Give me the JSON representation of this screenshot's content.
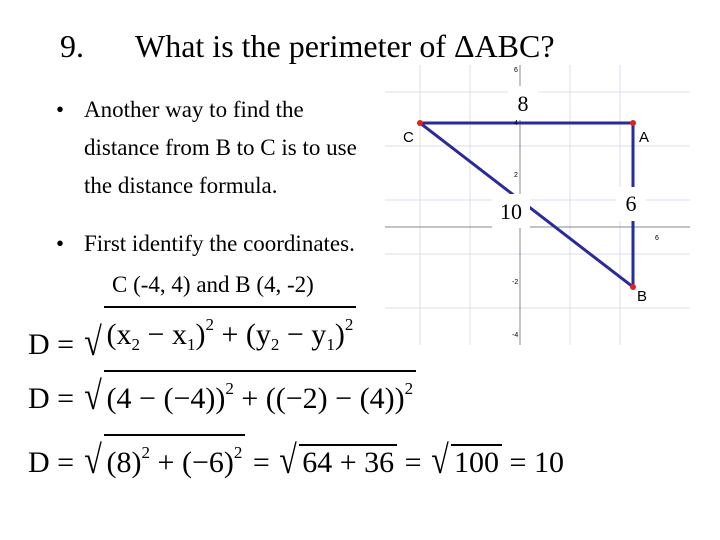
{
  "title": {
    "number": "9.",
    "text": "What is the perimeter of ΔABC?"
  },
  "bullets": [
    {
      "marker": "•",
      "lines": [
        "Another way to find the",
        "distance from B to C is to use",
        "the distance formula."
      ]
    },
    {
      "marker": "•",
      "lines": [
        "First identify the coordinates."
      ]
    }
  ],
  "coordinates": "C (-4, 4) and B (4, -2)",
  "formulas": [
    [
      {
        "text": "D = "
      },
      {
        "root": [
          {
            "text": "(x"
          },
          {
            "sub": "2"
          },
          {
            "text": " − x"
          },
          {
            "sub": "1"
          },
          {
            "text": ")"
          },
          {
            "sup": "2"
          },
          {
            "text": " + (y"
          },
          {
            "sub": "2"
          },
          {
            "text": " − y"
          },
          {
            "sub": "1"
          },
          {
            "text": ")"
          },
          {
            "sup": "2"
          }
        ]
      }
    ],
    [
      {
        "text": "D = "
      },
      {
        "root": [
          {
            "text": "(4 − (−4))"
          },
          {
            "sup": "2"
          },
          {
            "text": " + ((−2) − (4))"
          },
          {
            "sup": "2"
          }
        ]
      }
    ],
    [
      {
        "text": "D = "
      },
      {
        "root": [
          {
            "text": "(8)"
          },
          {
            "sup": "2"
          },
          {
            "text": " + (−6)"
          },
          {
            "sup": "2"
          }
        ]
      },
      {
        "text": " = "
      },
      {
        "root": [
          {
            "text": "64 + 36"
          }
        ]
      },
      {
        "text": " = "
      },
      {
        "root": [
          {
            "text": "100"
          }
        ]
      },
      {
        "text": " = 10"
      }
    ]
  ],
  "graph": {
    "points": [
      "C",
      "A",
      "B"
    ],
    "sides": [
      "8",
      "10",
      "6"
    ],
    "ticks": [
      "6",
      "4",
      "2",
      "-2",
      "-4",
      "6"
    ]
  }
}
